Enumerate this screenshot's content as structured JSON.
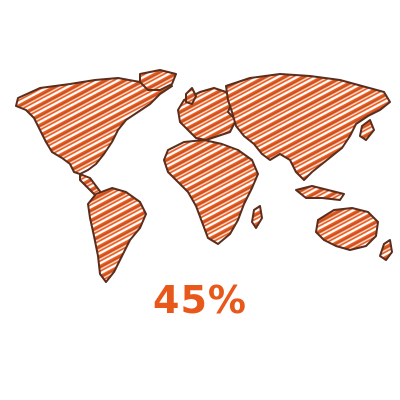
{
  "illustration": {
    "name": "world-map-sketch",
    "colors": {
      "fill": "#e8581a",
      "outline": "#5a2d1c",
      "hatch": "#ffffff",
      "hatch_dark": "#3a3a4a"
    }
  },
  "stat": {
    "value": "45%",
    "color": "#e8581a"
  }
}
